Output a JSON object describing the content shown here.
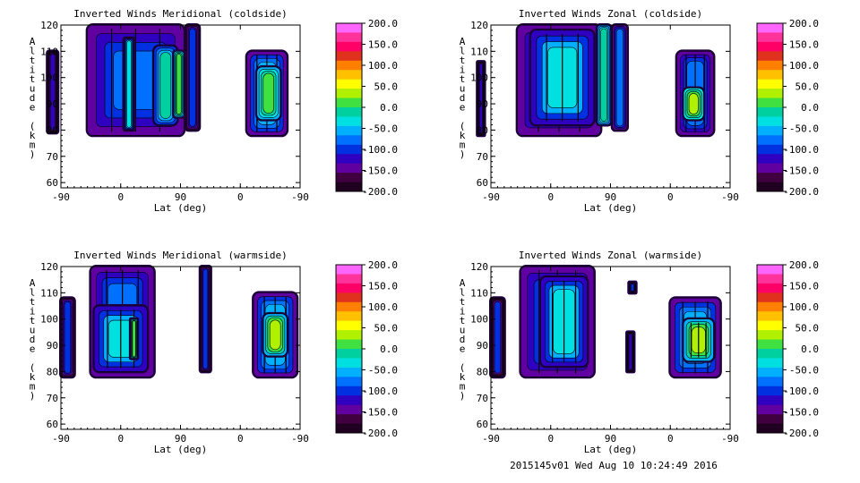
{
  "footer": "2015145v01 Wed Aug 10 10:24:49 2016",
  "colorbar": {
    "labels": [
      "200.0",
      "150.0",
      "100.0",
      "50.0",
      "0.0",
      "-50.0",
      "-100.0",
      "-150.0",
      "-200.0"
    ],
    "values": [
      200,
      150,
      100,
      50,
      0,
      -50,
      -100,
      -150,
      -200
    ],
    "colors": [
      "#ff66ff",
      "#ff3399",
      "#ff0066",
      "#e0301e",
      "#ff8000",
      "#ffc000",
      "#ffff00",
      "#b0f000",
      "#40e040",
      "#00d0a0",
      "#00e0e0",
      "#00b0ff",
      "#0070ff",
      "#0030e0",
      "#3000c0",
      "#6000a0",
      "#400040",
      "#200020"
    ]
  },
  "chart_data": [
    {
      "type": "heatmap",
      "title": "Inverted Winds Meridional (coldside)",
      "xlabel": "Lat (deg)",
      "ylabel": "Altitude (km)",
      "ylim": [
        58,
        120
      ],
      "xticks": [
        "-90",
        "0",
        "90",
        "0",
        "-90"
      ],
      "yticks": [
        "60",
        "70",
        "80",
        "90",
        "100",
        "110",
        "120"
      ],
      "regions": [
        {
          "x": [
            -110,
            -95
          ],
          "y": [
            79,
            110
          ],
          "level": -120
        },
        {
          "x": [
            -50,
            95
          ],
          "y": [
            78,
            120
          ],
          "level": -80
        },
        {
          "x": [
            5,
            20
          ],
          "y": [
            80,
            115
          ],
          "level": -40
        },
        {
          "x": [
            50,
            85
          ],
          "y": [
            82,
            112
          ],
          "level": -20
        },
        {
          "x": [
            80,
            95
          ],
          "y": [
            85,
            110
          ],
          "level": 20
        },
        {
          "x": [
            98,
            118
          ],
          "y": [
            80,
            120
          ],
          "level": -90
        },
        {
          "x": [
            190,
            250
          ],
          "y": [
            78,
            110
          ],
          "level": -60
        },
        {
          "x": [
            205,
            240
          ],
          "y": [
            84,
            104
          ],
          "level": 20
        }
      ]
    },
    {
      "type": "heatmap",
      "title": "Inverted Winds Zonal (coldside)",
      "xlabel": "Lat (deg)",
      "ylabel": "Altitude (km)",
      "ylim": [
        58,
        120
      ],
      "xticks": [
        "-90",
        "0",
        "90",
        "0",
        "-90"
      ],
      "yticks": [
        "60",
        "70",
        "80",
        "90",
        "100",
        "110",
        "120"
      ],
      "regions": [
        {
          "x": [
            -110,
            -100
          ],
          "y": [
            78,
            106
          ],
          "level": -120
        },
        {
          "x": [
            -50,
            75
          ],
          "y": [
            78,
            120
          ],
          "level": -70
        },
        {
          "x": [
            -30,
            65
          ],
          "y": [
            82,
            118
          ],
          "level": -40
        },
        {
          "x": [
            70,
            90
          ],
          "y": [
            82,
            120
          ],
          "level": 0
        },
        {
          "x": [
            93,
            115
          ],
          "y": [
            80,
            120
          ],
          "level": -80
        },
        {
          "x": [
            190,
            245
          ],
          "y": [
            78,
            110
          ],
          "level": -70
        },
        {
          "x": [
            200,
            230
          ],
          "y": [
            84,
            96
          ],
          "level": 40
        }
      ]
    },
    {
      "type": "heatmap",
      "title": "Inverted Winds Meridional (warmside)",
      "xlabel": "Lat (deg)",
      "ylabel": "Altitude (km)",
      "ylim": [
        58,
        120
      ],
      "xticks": [
        "-90",
        "0",
        "90",
        "0",
        "-90"
      ],
      "yticks": [
        "60",
        "70",
        "80",
        "90",
        "100",
        "110",
        "120"
      ],
      "regions": [
        {
          "x": [
            -90,
            -70
          ],
          "y": [
            78,
            108
          ],
          "level": -100
        },
        {
          "x": [
            -45,
            50
          ],
          "y": [
            78,
            120
          ],
          "level": -70
        },
        {
          "x": [
            -40,
            40
          ],
          "y": [
            80,
            105
          ],
          "level": -40
        },
        {
          "x": [
            15,
            25
          ],
          "y": [
            85,
            100
          ],
          "level": 20
        },
        {
          "x": [
            120,
            135
          ],
          "y": [
            80,
            120
          ],
          "level": -100
        },
        {
          "x": [
            200,
            265
          ],
          "y": [
            78,
            110
          ],
          "level": -60
        },
        {
          "x": [
            215,
            250
          ],
          "y": [
            86,
            102
          ],
          "level": 30
        }
      ]
    },
    {
      "type": "heatmap",
      "title": "Inverted Winds Zonal (warmside)",
      "xlabel": "Lat (deg)",
      "ylabel": "Altitude (km)",
      "ylim": [
        58,
        120
      ],
      "xticks": [
        "-90",
        "0",
        "90",
        "0",
        "-90"
      ],
      "yticks": [
        "60",
        "70",
        "80",
        "90",
        "100",
        "110",
        "120"
      ],
      "regions": [
        {
          "x": [
            -90,
            -70
          ],
          "y": [
            78,
            108
          ],
          "level": -110
        },
        {
          "x": [
            -45,
            65
          ],
          "y": [
            78,
            120
          ],
          "level": -70
        },
        {
          "x": [
            -15,
            55
          ],
          "y": [
            82,
            116
          ],
          "level": -40
        },
        {
          "x": [
            115,
            125
          ],
          "y": [
            80,
            95
          ],
          "level": -120
        },
        {
          "x": [
            118,
            128
          ],
          "y": [
            110,
            114
          ],
          "level": -100
        },
        {
          "x": [
            180,
            255
          ],
          "y": [
            78,
            108
          ],
          "level": -60
        },
        {
          "x": [
            200,
            245
          ],
          "y": [
            84,
            100
          ],
          "level": 30
        }
      ]
    }
  ]
}
